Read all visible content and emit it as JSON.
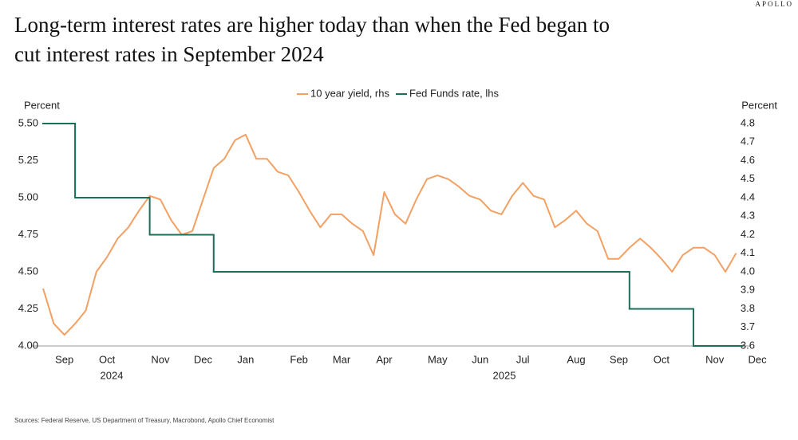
{
  "brand": "APOLLO",
  "chart_data": {
    "type": "line",
    "title": "Long-term interest rates are higher today than when the Fed began to cut interest rates in September 2024",
    "ylabel": "Percent",
    "y2label": "Percent",
    "source": "Sources: Federal Reserve, US Department of Treasury, Macrobond, Apollo Chief Economist",
    "years": [
      "2024",
      "2025"
    ],
    "categories": [
      null,
      null,
      "Sep",
      null,
      null,
      null,
      "Oct",
      null,
      null,
      null,
      null,
      "Nov",
      null,
      null,
      null,
      "Dec",
      null,
      null,
      null,
      "Jan",
      null,
      null,
      null,
      null,
      "Feb",
      null,
      null,
      null,
      "Mar",
      null,
      null,
      null,
      "Apr",
      null,
      null,
      null,
      null,
      "May",
      null,
      null,
      null,
      "Jun",
      null,
      null,
      null,
      "Jul",
      null,
      null,
      null,
      null,
      "Aug",
      null,
      null,
      null,
      "Sep",
      null,
      null,
      null,
      "Oct",
      null,
      null,
      null,
      null,
      "Nov",
      null,
      null,
      null,
      "Dec"
    ],
    "ylim": [
      4.0,
      5.5
    ],
    "yticks": [
      {
        "value": 4,
        "label": "4.00"
      },
      {
        "value": 4.25,
        "label": "4.25"
      },
      {
        "value": 4.5,
        "label": "4.50"
      },
      {
        "value": 4.75,
        "label": "4.75"
      },
      {
        "value": 5,
        "label": "5.00"
      },
      {
        "value": 5.25,
        "label": "5.25"
      },
      {
        "value": 5.5,
        "label": "5.50"
      }
    ],
    "y2lim": [
      3.6,
      4.8
    ],
    "y2ticks": [
      3.6,
      3.7,
      3.8,
      3.9,
      {
        "value": 4,
        "label": "4.0"
      },
      4.1,
      4.2,
      4.3,
      4.4,
      4.5,
      4.6,
      4.7,
      4.8
    ],
    "legend": "top",
    "series": [
      {
        "name": "10 year yield, rhs",
        "color": "#f2a063",
        "axis": "y2",
        "values": [
          3.91,
          3.72,
          3.66,
          3.72,
          3.79,
          4.0,
          4.08,
          4.18,
          4.24,
          4.33,
          4.41,
          4.39,
          4.28,
          4.2,
          4.22,
          4.39,
          4.56,
          4.61,
          4.71,
          4.74,
          4.61,
          4.61,
          4.54,
          4.52,
          4.43,
          4.33,
          4.24,
          4.31,
          4.31,
          4.26,
          4.22,
          4.09,
          4.43,
          4.31,
          4.26,
          4.39,
          4.5,
          4.52,
          4.5,
          4.46,
          4.41,
          4.39,
          4.33,
          4.31,
          4.41,
          4.48,
          4.41,
          4.39,
          4.24,
          4.28,
          4.33,
          4.26,
          4.22,
          4.07,
          4.07,
          4.13,
          4.18,
          4.13,
          4.07,
          4.0,
          4.09,
          4.13,
          4.13,
          4.09,
          4.0,
          4.1,
          null,
          null
        ]
      },
      {
        "name": "Fed Funds rate, lhs",
        "color": "#1b6e57",
        "axis": "y",
        "step": true,
        "values": [
          5.5,
          5.5,
          5.5,
          5.0,
          5.0,
          5.0,
          5.0,
          5.0,
          5.0,
          5.0,
          4.75,
          4.75,
          4.75,
          4.75,
          4.75,
          4.75,
          4.5,
          4.5,
          4.5,
          4.5,
          4.5,
          4.5,
          4.5,
          4.5,
          4.5,
          4.5,
          4.5,
          4.5,
          4.5,
          4.5,
          4.5,
          4.5,
          4.5,
          4.5,
          4.5,
          4.5,
          4.5,
          4.5,
          4.5,
          4.5,
          4.5,
          4.5,
          4.5,
          4.5,
          4.5,
          4.5,
          4.5,
          4.5,
          4.5,
          4.5,
          4.5,
          4.5,
          4.5,
          4.5,
          4.5,
          4.25,
          4.25,
          4.25,
          4.25,
          4.25,
          4.25,
          4.0,
          4.0,
          4.0,
          4.0,
          4.0,
          null,
          null
        ]
      }
    ]
  }
}
